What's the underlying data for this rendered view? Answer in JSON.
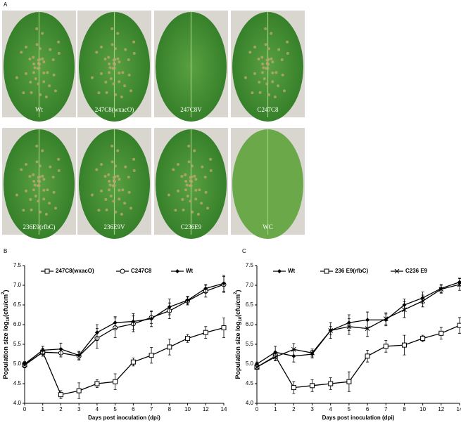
{
  "panels": [
    "A",
    "B",
    "C"
  ],
  "leaves": [
    "Wt",
    "247C8(wxacO)",
    "247C8V",
    "C247C8",
    "236E9(rfbC)",
    "236E9V",
    "C236E9",
    "WC"
  ],
  "chart_data": [
    {
      "type": "line",
      "categories": [
        "0",
        "1",
        "2",
        "3",
        "4",
        "5",
        "6",
        "7",
        "8",
        "10",
        "12",
        "14"
      ],
      "ylim": [
        4,
        7.5
      ],
      "yticks": [
        {
          "value": 4,
          "label": "4.0"
        },
        4.5,
        {
          "value": 5,
          "label": "5.0"
        },
        5.5,
        {
          "value": 6,
          "label": "6.0"
        },
        6.5,
        {
          "value": 7,
          "label": "7.0"
        },
        7.5
      ],
      "ylabel": [
        "Population size log",
        "10",
        "(cfu/cm",
        "2",
        ")"
      ],
      "xlabel": "Days post inoculation (dpi)",
      "series": [
        {
          "name": "247C8(wxacO)",
          "color": "#000000",
          "marker": "square",
          "values": [
            4.98,
            5.3,
            4.22,
            4.32,
            4.5,
            4.55,
            5.05,
            5.22,
            5.43,
            5.65,
            5.8,
            5.92
          ],
          "errors": [
            0.08,
            0.1,
            0.1,
            0.2,
            0.1,
            0.2,
            0.1,
            0.2,
            0.2,
            0.1,
            0.15,
            0.25
          ]
        },
        {
          "name": "C247C8",
          "color": "#000000",
          "marker": "circle",
          "values": [
            4.97,
            5.3,
            5.28,
            5.2,
            5.65,
            5.92,
            6.02,
            6.18,
            6.35,
            6.6,
            6.85,
            7.02
          ],
          "errors": [
            0.05,
            0.1,
            0.1,
            0.1,
            0.25,
            0.25,
            0.2,
            0.15,
            0.2,
            0.1,
            0.15,
            0.2
          ]
        },
        {
          "name": "Wt",
          "color": "#000000",
          "marker": "diamond",
          "values": [
            5,
            5.35,
            5.38,
            5.22,
            5.8,
            6.05,
            6.08,
            6.15,
            6.45,
            6.62,
            6.92,
            7.05
          ],
          "errors": [
            0.05,
            0.1,
            0.15,
            0.1,
            0.2,
            0.15,
            0.2,
            0.2,
            0.2,
            0.1,
            0.1,
            0.2
          ]
        }
      ]
    },
    {
      "type": "line",
      "categories": [
        "0",
        "1",
        "2",
        "3",
        "4",
        "5",
        "6",
        "7",
        "8",
        "10",
        "12",
        "14"
      ],
      "ylim": [
        4,
        7.5
      ],
      "yticks": [
        {
          "value": 4,
          "label": "4.0"
        },
        4.5,
        {
          "value": 5,
          "label": "5.0"
        },
        5.5,
        {
          "value": 6,
          "label": "6.0"
        },
        6.5,
        {
          "value": 7,
          "label": "7.0"
        },
        7.5
      ],
      "ylabel": [
        "Population size log",
        "10",
        "(cfu/cm",
        "2",
        ")"
      ],
      "xlabel": "Days post inoculation (dpi)",
      "series": [
        {
          "name": "Wt",
          "color": "#000000",
          "marker": "diamond",
          "values": [
            5,
            5.3,
            5.2,
            5.25,
            5.85,
            6.05,
            6.12,
            6.12,
            6.5,
            6.68,
            6.92,
            7.08
          ],
          "errors": [
            0.05,
            0.15,
            0.15,
            0.1,
            0.1,
            0.2,
            0.2,
            0.15,
            0.15,
            0.15,
            0.1,
            0.1
          ]
        },
        {
          "name": "236 E9(rfbC)",
          "color": "#000000",
          "marker": "square",
          "values": [
            4.92,
            5.2,
            4.4,
            4.45,
            4.5,
            4.55,
            5.2,
            5.45,
            5.48,
            5.65,
            5.78,
            5.98
          ],
          "errors": [
            0.05,
            0.1,
            0.15,
            0.15,
            0.15,
            0.25,
            0.15,
            0.15,
            0.25,
            0.08,
            0.15,
            0.2
          ]
        },
        {
          "name": "C236 E9",
          "color": "#000000",
          "marker": "x",
          "values": [
            4.92,
            5.18,
            5.37,
            5.28,
            5.85,
            5.95,
            5.9,
            6.15,
            6.38,
            6.6,
            6.9,
            7.02
          ],
          "errors": [
            0.05,
            0.1,
            0.15,
            0.1,
            0.2,
            0.2,
            0.2,
            0.15,
            0.2,
            0.15,
            0.1,
            0.15
          ]
        }
      ]
    }
  ]
}
